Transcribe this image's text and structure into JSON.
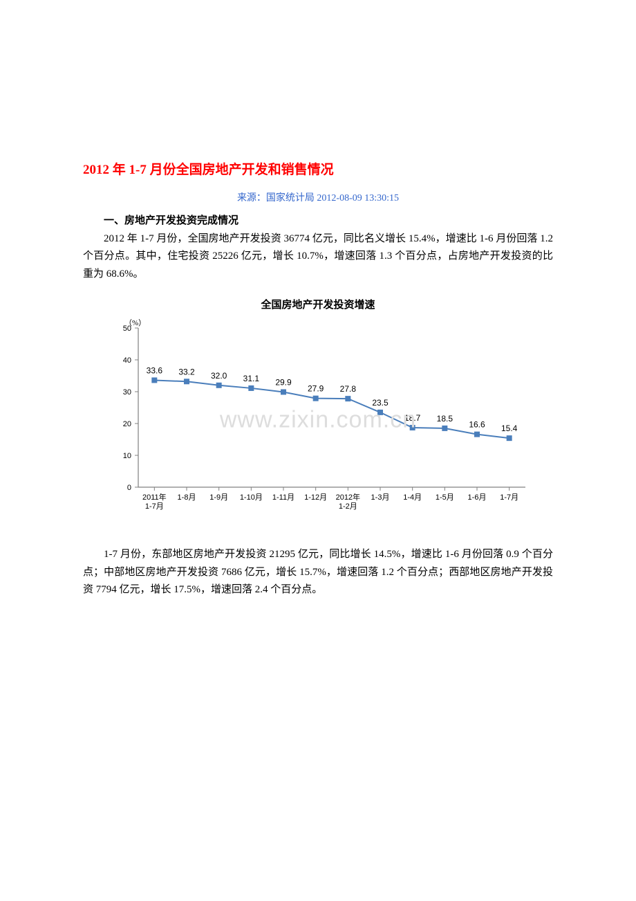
{
  "title": "2012 年 1-7 月份全国房地产开发和销售情况",
  "source": "来源：国家统计局  2012-08-09 13:30:15",
  "section1_heading": "一、房地产开发投资完成情况",
  "para1": "2012 年 1-7 月份，全国房地产开发投资 36774 亿元，同比名义增长 15.4%，增速比 1-6 月份回落 1.2 个百分点。其中，住宅投资 25226 亿元，增长 10.7%，增速回落 1.3 个百分点，占房地产开发投资的比重为 68.6%。",
  "para2": "1-7 月份，东部地区房地产开发投资 21295 亿元，同比增长 14.5%，增速比 1-6 月份回落 0.9 个百分点；中部地区房地产开发投资 7686 亿元，增长 15.7%，增速回落 1.2 个百分点；西部地区房地产开发投资 7794 亿元，增长 17.5%，增速回落 2.4 个百分点。",
  "watermark": "www.zixin.com.cn",
  "chart": {
    "type": "line",
    "title": "全国房地产开发投资增速",
    "y_unit": "（%）",
    "line_color": "#4a7ebb",
    "marker_color": "#4a7ebb",
    "marker_size": 4,
    "line_width": 2,
    "axis_color": "#808080",
    "grid_color": "#d0d0d0",
    "background_color": "#ffffff",
    "title_fontsize": 15,
    "label_fontsize": 11,
    "value_fontsize": 12,
    "ylim": [
      0,
      50
    ],
    "ytick_step": 10,
    "yticks": [
      0,
      10,
      20,
      30,
      40,
      50
    ],
    "categories": [
      "2011年\n1-7月",
      "1-8月",
      "1-9月",
      "1-10月",
      "1-11月",
      "1-12月",
      "2012年\n1-2月",
      "1-3月",
      "1-4月",
      "1-5月",
      "1-6月",
      "1-7月"
    ],
    "values": [
      33.6,
      33.2,
      32.0,
      31.1,
      29.9,
      27.9,
      27.8,
      23.5,
      18.7,
      18.5,
      16.6,
      15.4
    ]
  }
}
